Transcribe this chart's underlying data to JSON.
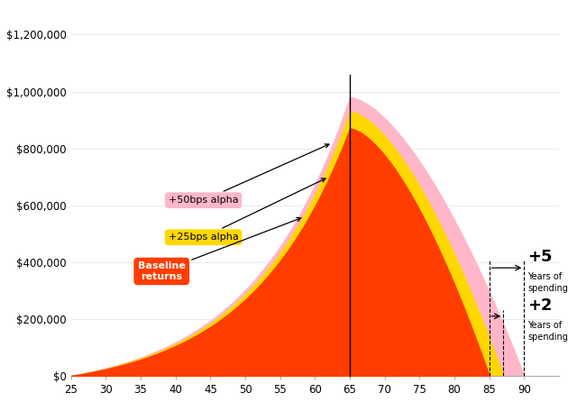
{
  "x_min": 25,
  "x_max": 90,
  "y_min": 0,
  "y_max": 1300000,
  "x_ticks": [
    25,
    30,
    35,
    40,
    45,
    50,
    55,
    60,
    65,
    70,
    75,
    80,
    85,
    90
  ],
  "y_ticks": [
    0,
    200000,
    400000,
    600000,
    800000,
    1000000,
    1200000
  ],
  "y_tick_labels": [
    "$0",
    "$200,000",
    "$400,000",
    "$600,000",
    "$800,000",
    "$1,000,000",
    "$1,200,000"
  ],
  "retirement_age": 65,
  "baseline_end_age": 85,
  "alpha25_end_age": 87,
  "alpha50_end_age": 90,
  "peak_baseline": 870000,
  "peak_alpha25": 930000,
  "peak_alpha50": 980000,
  "color_baseline": "#FF3D00",
  "color_alpha25": "#FFD700",
  "color_alpha50": "#FFB6C8",
  "color_vline": "#000000",
  "background_color": "#FFFFFF",
  "annot_50bps_text": "+50bps alpha",
  "annot_25bps_text": "+25bps alpha",
  "annot_base_text": "Baseline\nreturns",
  "plus5_text": "+5",
  "plus5_sub": "Years of\nspending",
  "plus2_text": "+2",
  "plus2_sub": "Years of\nspending"
}
